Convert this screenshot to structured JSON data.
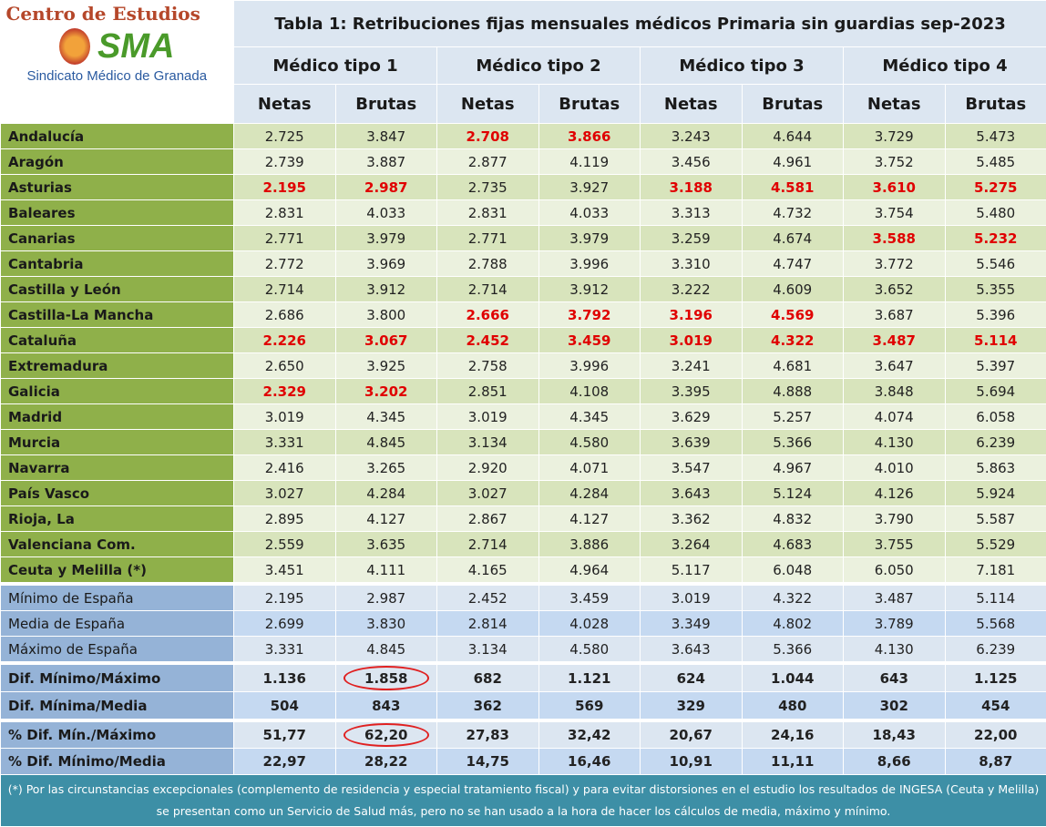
{
  "logo": {
    "title": "Centro de Estudios",
    "mark": "SMA",
    "subtitle": "Sindicato Médico de Granada"
  },
  "table": {
    "title": "Tabla 1: Retribuciones fijas mensuales médicos Primaria sin guardias sep-2023",
    "groups": [
      "Médico tipo 1",
      "Médico tipo 2",
      "Médico tipo 3",
      "Médico tipo 4"
    ],
    "subheaders": [
      "Netas",
      "Brutas",
      "Netas",
      "Brutas",
      "Netas",
      "Brutas",
      "Netas",
      "Brutas"
    ],
    "highlight_color": "#e00000",
    "circle_color": "#e02020",
    "rows": [
      {
        "label": "Andalucía",
        "values": [
          "2.725",
          "3.847",
          "2.708",
          "3.866",
          "3.243",
          "4.644",
          "3.729",
          "5.473"
        ],
        "highlight": [
          2,
          3
        ]
      },
      {
        "label": "Aragón",
        "values": [
          "2.739",
          "3.887",
          "2.877",
          "4.119",
          "3.456",
          "4.961",
          "3.752",
          "5.485"
        ],
        "highlight": []
      },
      {
        "label": "Asturias",
        "values": [
          "2.195",
          "2.987",
          "2.735",
          "3.927",
          "3.188",
          "4.581",
          "3.610",
          "5.275"
        ],
        "highlight": [
          0,
          1,
          4,
          5,
          6,
          7
        ]
      },
      {
        "label": "Baleares",
        "values": [
          "2.831",
          "4.033",
          "2.831",
          "4.033",
          "3.313",
          "4.732",
          "3.754",
          "5.480"
        ],
        "highlight": []
      },
      {
        "label": "Canarias",
        "values": [
          "2.771",
          "3.979",
          "2.771",
          "3.979",
          "3.259",
          "4.674",
          "3.588",
          "5.232"
        ],
        "highlight": [
          6,
          7
        ]
      },
      {
        "label": "Cantabria",
        "values": [
          "2.772",
          "3.969",
          "2.788",
          "3.996",
          "3.310",
          "4.747",
          "3.772",
          "5.546"
        ],
        "highlight": []
      },
      {
        "label": "Castilla y León",
        "values": [
          "2.714",
          "3.912",
          "2.714",
          "3.912",
          "3.222",
          "4.609",
          "3.652",
          "5.355"
        ],
        "highlight": []
      },
      {
        "label": "Castilla-La Mancha",
        "values": [
          "2.686",
          "3.800",
          "2.666",
          "3.792",
          "3.196",
          "4.569",
          "3.687",
          "5.396"
        ],
        "highlight": [
          2,
          3,
          4,
          5
        ]
      },
      {
        "label": "Cataluña",
        "values": [
          "2.226",
          "3.067",
          "2.452",
          "3.459",
          "3.019",
          "4.322",
          "3.487",
          "5.114"
        ],
        "highlight": [
          0,
          1,
          2,
          3,
          4,
          5,
          6,
          7
        ]
      },
      {
        "label": "Extremadura",
        "values": [
          "2.650",
          "3.925",
          "2.758",
          "3.996",
          "3.241",
          "4.681",
          "3.647",
          "5.397"
        ],
        "highlight": []
      },
      {
        "label": "Galicia",
        "values": [
          "2.329",
          "3.202",
          "2.851",
          "4.108",
          "3.395",
          "4.888",
          "3.848",
          "5.694"
        ],
        "highlight": [
          0,
          1
        ]
      },
      {
        "label": "Madrid",
        "values": [
          "3.019",
          "4.345",
          "3.019",
          "4.345",
          "3.629",
          "5.257",
          "4.074",
          "6.058"
        ],
        "highlight": []
      },
      {
        "label": "Murcia",
        "values": [
          "3.331",
          "4.845",
          "3.134",
          "4.580",
          "3.639",
          "5.366",
          "4.130",
          "6.239"
        ],
        "highlight": []
      },
      {
        "label": "Navarra",
        "values": [
          "2.416",
          "3.265",
          "2.920",
          "4.071",
          "3.547",
          "4.967",
          "4.010",
          "5.863"
        ],
        "highlight": []
      },
      {
        "label": "País Vasco",
        "values": [
          "3.027",
          "4.284",
          "3.027",
          "4.284",
          "3.643",
          "5.124",
          "4.126",
          "5.924"
        ],
        "highlight": []
      },
      {
        "label": "Rioja, La",
        "values": [
          "2.895",
          "4.127",
          "2.867",
          "4.127",
          "3.362",
          "4.832",
          "3.790",
          "5.587"
        ],
        "highlight": []
      },
      {
        "label": "Valenciana Com.",
        "values": [
          "2.559",
          "3.635",
          "2.714",
          "3.886",
          "3.264",
          "4.683",
          "3.755",
          "5.529"
        ],
        "highlight": []
      },
      {
        "label": "Ceuta y Melilla (*)",
        "values": [
          "3.451",
          "4.111",
          "4.165",
          "4.964",
          "5.117",
          "6.048",
          "6.050",
          "7.181"
        ],
        "highlight": []
      }
    ],
    "summary": [
      [
        {
          "label": "Mínimo de España",
          "values": [
            "2.195",
            "2.987",
            "2.452",
            "3.459",
            "3.019",
            "4.322",
            "3.487",
            "5.114"
          ],
          "circled": []
        },
        {
          "label": "Media de España",
          "values": [
            "2.699",
            "3.830",
            "2.814",
            "4.028",
            "3.349",
            "4.802",
            "3.789",
            "5.568"
          ],
          "circled": []
        },
        {
          "label": "Máximo de España",
          "values": [
            "3.331",
            "4.845",
            "3.134",
            "4.580",
            "3.643",
            "5.366",
            "4.130",
            "6.239"
          ],
          "circled": []
        }
      ],
      [
        {
          "label": "Dif. Mínimo/Máximo",
          "values": [
            "1.136",
            "1.858",
            "682",
            "1.121",
            "624",
            "1.044",
            "643",
            "1.125"
          ],
          "circled": [
            1
          ]
        },
        {
          "label": "Dif. Mínima/Media",
          "values": [
            "504",
            "843",
            "362",
            "569",
            "329",
            "480",
            "302",
            "454"
          ],
          "circled": []
        }
      ],
      [
        {
          "label": "% Dif. Mín./Máximo",
          "values": [
            "51,77",
            "62,20",
            "27,83",
            "32,42",
            "20,67",
            "24,16",
            "18,43",
            "22,00"
          ],
          "circled": [
            1
          ]
        },
        {
          "label": "% Dif. Mínimo/Media",
          "values": [
            "22,97",
            "28,22",
            "14,75",
            "16,46",
            "10,91",
            "11,11",
            "8,66",
            "8,87"
          ],
          "circled": []
        }
      ]
    ],
    "footnote": "(*) Por las circunstancias excepcionales (complemento de residencia y especial tratamiento fiscal) y para evitar distorsiones en el estudio los resultados de INGESA (Ceuta y Melilla) se presentan como un Servicio de Salud más, pero no se han usado a la hora de hacer los cálculos de media, máximo y mínimo."
  }
}
